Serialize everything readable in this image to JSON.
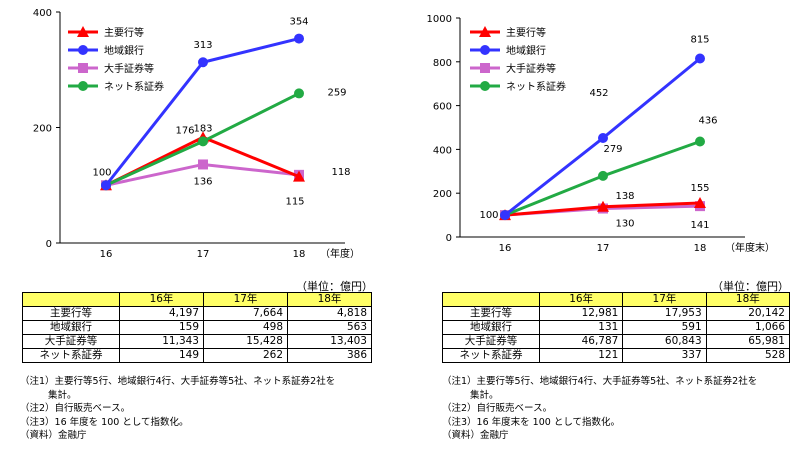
{
  "legend_labels": [
    "主要行等",
    "地域銀行",
    "大手証券等",
    "ネット系証券"
  ],
  "colors": {
    "major_banks": "#ff0000",
    "regional_banks": "#3333ff",
    "major_securities": "#cc66cc",
    "online_securities": "#22aa44"
  },
  "chart_data": [
    {
      "type": "line",
      "x": [
        "16",
        "17",
        "18"
      ],
      "x_unit_label": "（年度）",
      "y_ticks": [
        "0",
        "200",
        "400"
      ],
      "ylim": [
        0,
        400
      ],
      "series": [
        {
          "name": "主要行等",
          "values": [
            100,
            183,
            115
          ],
          "labels": [
            "",
            "183",
            "115"
          ]
        },
        {
          "name": "地域銀行",
          "values": [
            100,
            313,
            354
          ],
          "labels": [
            "",
            "313",
            "354"
          ]
        },
        {
          "name": "大手証券等",
          "values": [
            100,
            136,
            118
          ],
          "labels": [
            "",
            "136",
            "118"
          ]
        },
        {
          "name": "ネット系証券",
          "values": [
            100,
            176,
            259
          ],
          "labels": [
            "100",
            "176",
            "259"
          ]
        }
      ]
    },
    {
      "type": "line",
      "x": [
        "16",
        "17",
        "18"
      ],
      "x_unit_label": "（年度末）",
      "y_ticks": [
        "0",
        "200",
        "400",
        "600",
        "800",
        "1000"
      ],
      "ylim": [
        0,
        1000
      ],
      "series": [
        {
          "name": "主要行等",
          "values": [
            100,
            138,
            155
          ],
          "labels": [
            "",
            "138",
            "155"
          ]
        },
        {
          "name": "地域銀行",
          "values": [
            100,
            452,
            815
          ],
          "labels": [
            "",
            "452",
            "815"
          ]
        },
        {
          "name": "大手証券等",
          "values": [
            100,
            130,
            141
          ],
          "labels": [
            "",
            "130",
            "141"
          ]
        },
        {
          "name": "ネット系証券",
          "values": [
            100,
            279,
            436
          ],
          "labels": [
            "100",
            "279",
            "436"
          ]
        }
      ]
    }
  ],
  "left_table": {
    "unit": "（単位：億円）",
    "headers": [
      "16年",
      "17年",
      "18年"
    ],
    "rows": [
      {
        "label": "主要行等",
        "values": [
          "4,197",
          "7,664",
          "4,818"
        ]
      },
      {
        "label": "地域銀行",
        "values": [
          "159",
          "498",
          "563"
        ]
      },
      {
        "label": "大手証券等",
        "values": [
          "11,343",
          "15,428",
          "13,403"
        ]
      },
      {
        "label": "ネット系証券",
        "values": [
          "149",
          "262",
          "386"
        ]
      }
    ]
  },
  "right_table": {
    "unit": "（単位：億円）",
    "headers": [
      "16年",
      "17年",
      "18年"
    ],
    "rows": [
      {
        "label": "主要行等",
        "values": [
          "12,981",
          "17,953",
          "20,142"
        ]
      },
      {
        "label": "地域銀行",
        "values": [
          "131",
          "591",
          "1,066"
        ]
      },
      {
        "label": "大手証券等",
        "values": [
          "46,787",
          "60,843",
          "65,981"
        ]
      },
      {
        "label": "ネット系証券",
        "values": [
          "121",
          "337",
          "528"
        ]
      }
    ]
  },
  "left_notes": {
    "n1a": "（注1）主要行等5行、地域銀行4行、大手証券等5社、ネット系証券2社を",
    "n1b": "集計。",
    "n2": "（注2）自行販売ベース。",
    "n3": "（注3）16 年度を 100 として指数化。",
    "src": "（資料）金融庁"
  },
  "right_notes": {
    "n1a": "（注1）主要行等5行、地域銀行4行、大手証券等5社、ネット系証券2社を",
    "n1b": "集計。",
    "n2": "（注2）自行販売ベース。",
    "n3": "（注3）16 年度末を 100 として指数化。",
    "src": "（資料）金融庁"
  }
}
